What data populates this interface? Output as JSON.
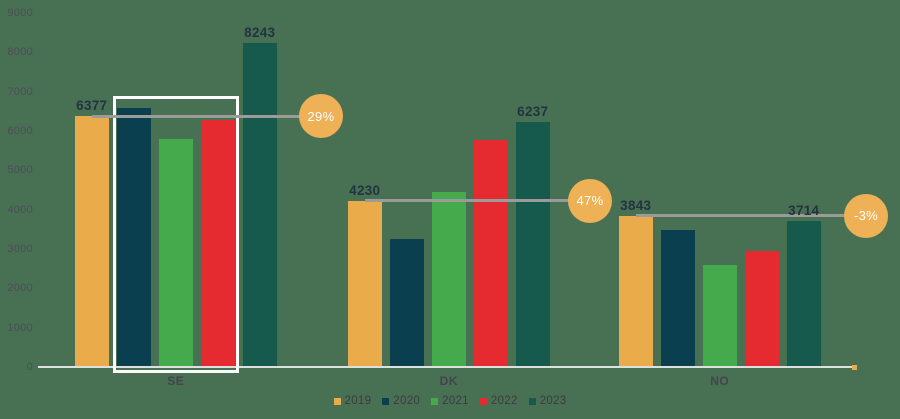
{
  "background": "#487154",
  "chart_data": {
    "type": "bar",
    "title": "",
    "xlabel": "",
    "ylabel": "",
    "categories": [
      "SE",
      "DK",
      "NO"
    ],
    "series": [
      {
        "name": "2019",
        "color": "#EAAB4B",
        "values": [
          6377,
          4230,
          3843
        ]
      },
      {
        "name": "2020",
        "color": "#093F4E",
        "values": [
          6590,
          3250,
          3480
        ]
      },
      {
        "name": "2021",
        "color": "#45AA4C",
        "values": [
          5800,
          4450,
          2600
        ]
      },
      {
        "name": "2022",
        "color": "#E52B2F",
        "values": [
          6280,
          5770,
          2960
        ]
      },
      {
        "name": "2023",
        "color": "#155A4C",
        "values": [
          8243,
          6237,
          3714
        ]
      }
    ],
    "bar_labels": [
      {
        "category": "SE",
        "series": "2019",
        "text": "6377"
      },
      {
        "category": "SE",
        "series": "2023",
        "text": "8243"
      },
      {
        "category": "DK",
        "series": "2019",
        "text": "4230"
      },
      {
        "category": "DK",
        "series": "2023",
        "text": "6237"
      },
      {
        "category": "NO",
        "series": "2019",
        "text": "3843"
      },
      {
        "category": "NO",
        "series": "2023",
        "text": "3714"
      }
    ],
    "annotations": [
      {
        "category": "SE",
        "badge": "29%",
        "from_series": "2019",
        "to_series": "2023"
      },
      {
        "category": "DK",
        "badge": "47%",
        "from_series": "2019",
        "to_series": "2023"
      },
      {
        "category": "NO",
        "badge": "-3%",
        "from_series": "2019",
        "to_series": "2023"
      }
    ],
    "highlight_box": {
      "category": "SE",
      "series": [
        "2020",
        "2021",
        "2022"
      ]
    },
    "ylim": [
      0,
      9000
    ],
    "yticks": [
      "9000",
      "8000",
      "7000",
      "6000",
      "5000",
      "4000",
      "3000",
      "2000",
      "1000",
      "0"
    ],
    "grid": false,
    "legend_position": "bottom",
    "colors": {
      "badge_fill": "#EFB156",
      "badge_text": "#FFFFFF",
      "comparison_line": "#9D9B99",
      "axis_line": "#DDE1DE",
      "axis_end_cap": "#EAAB4B",
      "value_label": "#233340",
      "tick_label": "#4E4C58",
      "category_label": "#45434D",
      "legend_text": "#3C3B44",
      "highlight_border": "#FFFFFF"
    }
  }
}
